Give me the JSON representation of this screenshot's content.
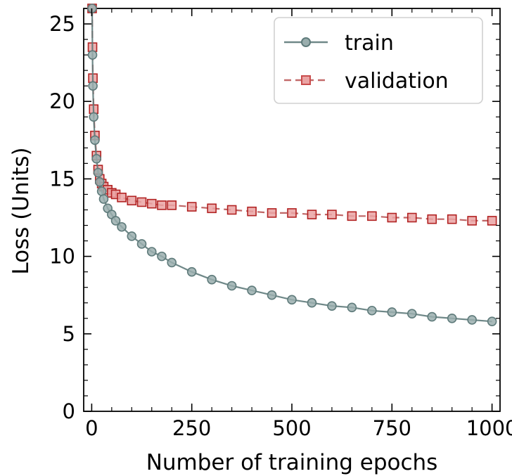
{
  "chart_data": {
    "type": "line",
    "title": "",
    "xlabel": "Number of training epochs",
    "ylabel": "Loss (Units)",
    "xlim": [
      -20,
      1020
    ],
    "ylim": [
      0,
      26
    ],
    "xticks": [
      0,
      250,
      500,
      750,
      1000
    ],
    "xtick_labels": [
      "0",
      "250",
      "500",
      "750",
      "1000"
    ],
    "yticks": [
      0,
      5,
      10,
      15,
      20,
      25
    ],
    "ytick_labels": [
      "0",
      "5",
      "10",
      "15",
      "20",
      "25"
    ],
    "grid": false,
    "legend_position": "top-right",
    "series": [
      {
        "name": "train",
        "color": "#5f7b7b",
        "marker": "circle",
        "line_style": "solid",
        "x": [
          1,
          2,
          3,
          5,
          8,
          12,
          16,
          20,
          25,
          30,
          40,
          50,
          60,
          75,
          100,
          125,
          150,
          175,
          200,
          250,
          300,
          350,
          400,
          450,
          500,
          550,
          600,
          650,
          700,
          750,
          800,
          850,
          900,
          950,
          1000
        ],
        "y": [
          26,
          23,
          21,
          19,
          17.5,
          16.3,
          15.4,
          14.8,
          14.2,
          13.7,
          13.1,
          12.7,
          12.3,
          11.9,
          11.3,
          10.8,
          10.3,
          10.0,
          9.6,
          9.0,
          8.5,
          8.1,
          7.8,
          7.5,
          7.2,
          7.0,
          6.8,
          6.7,
          6.5,
          6.4,
          6.3,
          6.1,
          6.0,
          5.9,
          5.8
        ]
      },
      {
        "name": "validation",
        "color": "#8b1a1a",
        "marker": "square",
        "line_style": "dashed",
        "x": [
          1,
          2,
          3,
          5,
          8,
          12,
          16,
          20,
          25,
          30,
          40,
          50,
          60,
          75,
          100,
          125,
          150,
          175,
          200,
          250,
          300,
          350,
          400,
          450,
          500,
          550,
          600,
          650,
          700,
          750,
          800,
          850,
          900,
          950,
          1000
        ],
        "y": [
          26,
          23.5,
          21.5,
          19.5,
          17.8,
          16.5,
          15.6,
          15.0,
          14.7,
          14.5,
          14.3,
          14.1,
          14.0,
          13.8,
          13.6,
          13.5,
          13.4,
          13.3,
          13.3,
          13.2,
          13.1,
          13.0,
          12.9,
          12.8,
          12.8,
          12.7,
          12.7,
          12.6,
          12.6,
          12.5,
          12.5,
          12.4,
          12.4,
          12.3,
          12.3
        ]
      }
    ]
  }
}
